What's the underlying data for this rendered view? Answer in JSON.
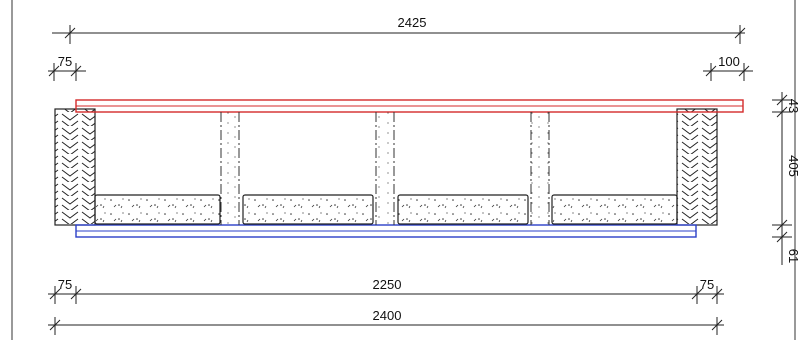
{
  "drawing": {
    "dimensions": {
      "top_overall": "2425",
      "top_left_overhang": "75",
      "top_right_overhang": "100",
      "bottom_left_wall": "75",
      "bottom_span": "2250",
      "bottom_right_wall": "75",
      "bottom_overall": "2400",
      "right_top_layer": "43",
      "right_height": "405",
      "right_bottom_layer": "61"
    },
    "colors": {
      "top_board": "#d42a2a",
      "bottom_board": "#2a3fc8",
      "line": "#222222",
      "frame_border": "#333333"
    }
  }
}
